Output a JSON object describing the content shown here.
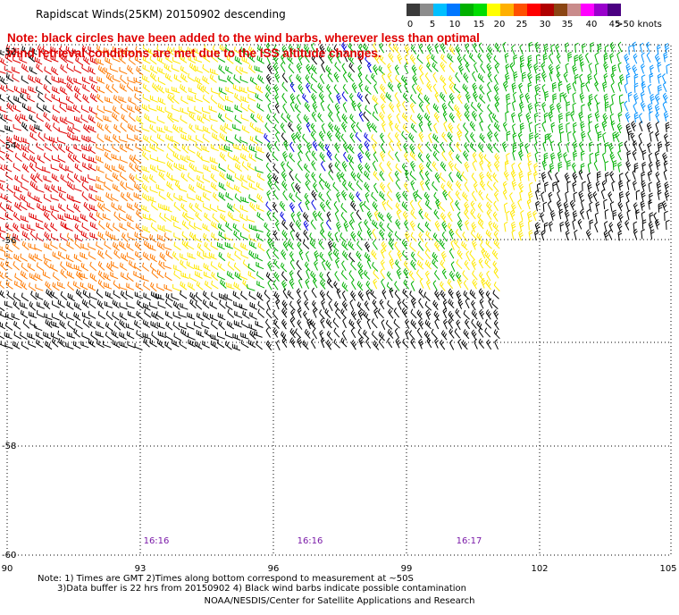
{
  "title": "Rapidscat Winds(25KM) 20150902 descending",
  "note": "Note: black circles have been added to the wind barbs, wherever less than optimal wind retrieval conditions are met due to the ISS altitude changes.",
  "legend": {
    "labels": [
      "0",
      "5",
      "10",
      "15",
      "20",
      "25",
      "30",
      "35",
      "40",
      "45",
      ">50 knots"
    ],
    "colors": [
      "#3a3a3a",
      "#8c8c8c",
      "#00bfff",
      "#0077ff",
      "#00b000",
      "#00dd00",
      "#ffff00",
      "#ffb000",
      "#ff5000",
      "#ff0000",
      "#b00000",
      "#8b4513",
      "#c98b8b",
      "#ff00ff",
      "#9900cc",
      "#4b0082"
    ]
  },
  "map": {
    "lat_labels": [
      "-52",
      "-54",
      "-56",
      "-58",
      "-60"
    ],
    "lon_labels": [
      "90",
      "93",
      "96",
      "99",
      "102",
      "105"
    ],
    "time_labels": [
      "16:16",
      "16:16",
      "16:17"
    ],
    "lon_range": [
      90,
      105
    ],
    "lat_range": [
      -60,
      -51
    ],
    "wind_colors": {
      "black": "#000000",
      "red": "#e00000",
      "orange": "#ff7a00",
      "yellow": "#ffe800",
      "green": "#00b000",
      "blue": "#0000e0",
      "skyblue": "#0090ff"
    }
  },
  "footnotes": {
    "line1": "Note: 1) Times are GMT 2)Times along bottom correspond to measurement at ~50S",
    "line2": "3)Data buffer is 22 hrs from 20150902 4) Black wind barbs indicate possible contamination"
  },
  "credit": "NOAA/NESDIS/Center for Satellite Applications and Research"
}
